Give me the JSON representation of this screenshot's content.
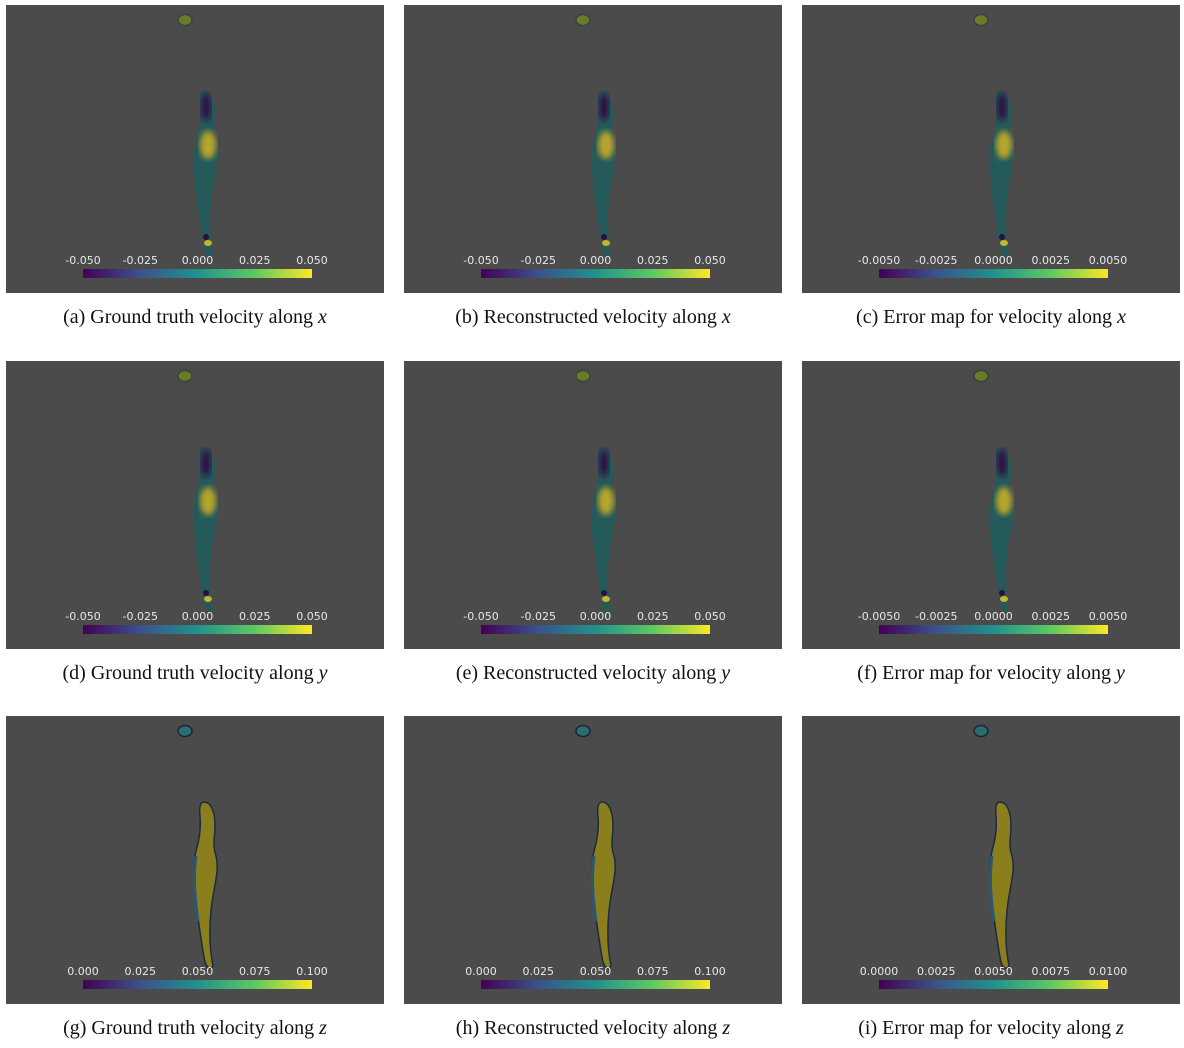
{
  "panels": [
    {
      "label": "(a)",
      "caption": "Ground truth velocity along",
      "axis": "x",
      "ticks": [
        "-0.050",
        "-0.025",
        "0.000",
        "0.025",
        "0.050"
      ]
    },
    {
      "label": "(b)",
      "caption": "Reconstructed velocity along",
      "axis": "x",
      "ticks": [
        "-0.050",
        "-0.025",
        "0.000",
        "0.025",
        "0.050"
      ]
    },
    {
      "label": "(c)",
      "caption": "Error map for velocity along",
      "axis": "x",
      "ticks": [
        "-0.0050",
        "-0.0025",
        "0.0000",
        "0.0025",
        "0.0050"
      ]
    },
    {
      "label": "(d)",
      "caption": "Ground truth velocity along",
      "axis": "y",
      "ticks": [
        "-0.050",
        "-0.025",
        "0.000",
        "0.025",
        "0.050"
      ]
    },
    {
      "label": "(e)",
      "caption": "Reconstructed velocity along",
      "axis": "y",
      "ticks": [
        "-0.050",
        "-0.025",
        "0.000",
        "0.025",
        "0.050"
      ]
    },
    {
      "label": "(f)",
      "caption": "Error map for velocity along",
      "axis": "y",
      "ticks": [
        "-0.0050",
        "-0.0025",
        "0.0000",
        "0.0025",
        "0.0050"
      ]
    },
    {
      "label": "(g)",
      "caption": "Ground truth velocity along",
      "axis": "z",
      "ticks": [
        "0.000",
        "0.025",
        "0.050",
        "0.075",
        "0.100"
      ]
    },
    {
      "label": "(h)",
      "caption": "Reconstructed velocity along",
      "axis": "z",
      "ticks": [
        "0.000",
        "0.025",
        "0.050",
        "0.075",
        "0.100"
      ]
    },
    {
      "label": "(i)",
      "caption": "Error map for velocity along",
      "axis": "z",
      "ticks": [
        "0.0000",
        "0.0025",
        "0.0050",
        "0.0075",
        "0.0100"
      ]
    }
  ]
}
